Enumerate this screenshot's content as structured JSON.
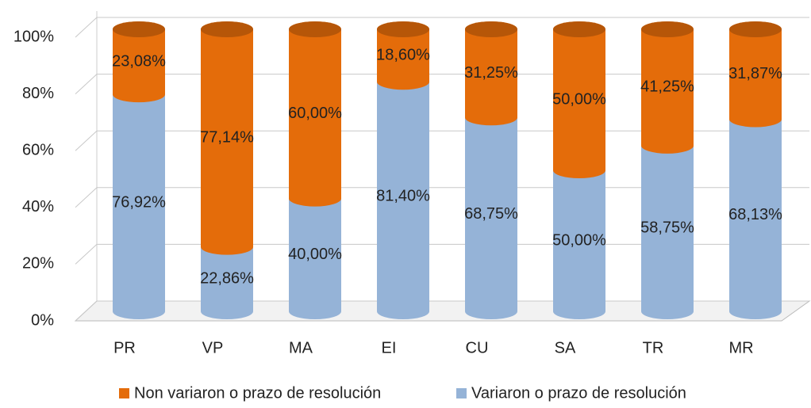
{
  "chart_data": {
    "type": "bar3d_stacked",
    "categories": [
      "PR",
      "VP",
      "MA",
      "EI",
      "CU",
      "SA",
      "TR",
      "MR"
    ],
    "series": [
      {
        "name": "Variaron o prazo de resolución",
        "color": "#95b3d7",
        "values": [
          76.92,
          22.86,
          40.0,
          81.4,
          68.75,
          50.0,
          58.75,
          68.13
        ],
        "value_labels": [
          "76,92%",
          "22,86%",
          "40,00%",
          "81,40%",
          "68,75%",
          "50,00%",
          "58,75%",
          "68,13%"
        ]
      },
      {
        "name": "Non variaron o prazo de resolución",
        "color": "#e46c0a",
        "values": [
          23.08,
          77.14,
          60.0,
          18.6,
          31.25,
          50.0,
          41.25,
          31.87
        ],
        "value_labels": [
          "23,08%",
          "77,14%",
          "60,00%",
          "18,60%",
          "31,25%",
          "50,00%",
          "41,25%",
          "31,87%"
        ]
      }
    ],
    "ylim": [
      0,
      100
    ],
    "yticks": [
      {
        "value": 0,
        "label": "0%"
      },
      {
        "value": 20,
        "label": "20%"
      },
      {
        "value": 40,
        "label": "40%"
      },
      {
        "value": 60,
        "label": "60%"
      },
      {
        "value": 80,
        "label": "80%"
      },
      {
        "value": 100,
        "label": "100%"
      }
    ],
    "grid": true
  }
}
